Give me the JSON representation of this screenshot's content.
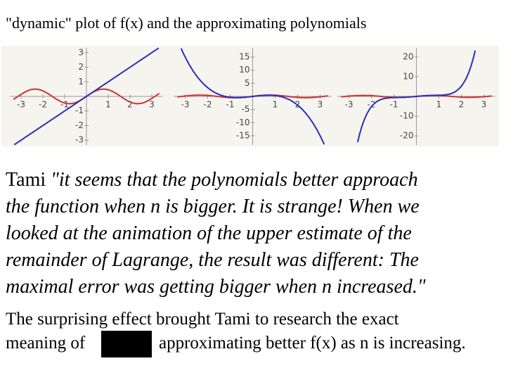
{
  "title": "\"dynamic\" plot of f(x) and the approximating polynomials",
  "plots": [
    {
      "xlim": [
        -3.5,
        3.5
      ],
      "ylim": [
        -3.33,
        3.33
      ],
      "xticks": [
        -3,
        -2,
        -1,
        1,
        2,
        3
      ],
      "yticks": [
        3,
        2,
        1,
        -1,
        -2,
        -3
      ]
    },
    {
      "xlim": [
        -3.5,
        3.5
      ],
      "ylim": [
        -18.5,
        18.5
      ],
      "xticks": [
        -3,
        -2,
        -1,
        1,
        2,
        3
      ],
      "yticks": [
        15,
        10,
        5,
        -5,
        -10,
        -15
      ]
    },
    {
      "xlim": [
        -3.5,
        3.5
      ],
      "ylim": [
        -24.6,
        24.6
      ],
      "xticks": [
        -3,
        -2,
        -1,
        1,
        2,
        3
      ],
      "yticks": [
        20,
        10,
        -10,
        -20
      ]
    }
  ],
  "quote": {
    "speaker": "Tami",
    "lines": [
      "\"it seems that the polynomials better approach",
      "the function when n is bigger. It is strange! When we",
      "looked at the animation of the upper estimate of the",
      "remainder of Lagrange, the result was different: The",
      "maximal error was getting bigger when n increased.\""
    ]
  },
  "body": {
    "line1": "The surprising effect brought Tami to research the exact",
    "line2_start": "meaning of",
    "line2_end": "approximating better f(x) as n is increasing."
  }
}
